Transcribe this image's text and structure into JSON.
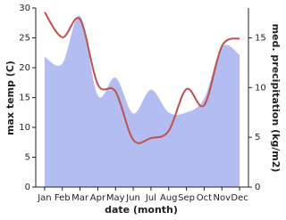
{
  "chart_data": {
    "type": "line-area",
    "categories": [
      "Jan",
      "Feb",
      "Mar",
      "Apr",
      "May",
      "Jun",
      "Jul",
      "Aug",
      "Sep",
      "Oct",
      "Nov",
      "Dec"
    ],
    "x_label": "date (month)",
    "y_label": "max temp (C)",
    "y2_label": "med. precipitation (kg/m2)",
    "ylim": [
      0,
      30
    ],
    "yticks": [
      0,
      5,
      10,
      15,
      20,
      25,
      30
    ],
    "y2lim": [
      0,
      18
    ],
    "y2ticks": [
      0,
      5,
      10,
      15
    ],
    "series": [
      {
        "name": "med. precipitation",
        "axis": "y2",
        "kind": "area",
        "color": "#b3bdf2",
        "values": [
          13.1,
          12.4,
          17.2,
          9.2,
          11,
          7.4,
          9.8,
          7.5,
          7.5,
          8.9,
          14.1,
          13.3
        ]
      },
      {
        "name": "max temp",
        "axis": "y",
        "kind": "line",
        "color": "#c0504d",
        "values": [
          29.3,
          25.1,
          28.1,
          17.2,
          16,
          7.9,
          8.2,
          9.4,
          16.4,
          13.7,
          23.6,
          24.9
        ]
      }
    ]
  }
}
